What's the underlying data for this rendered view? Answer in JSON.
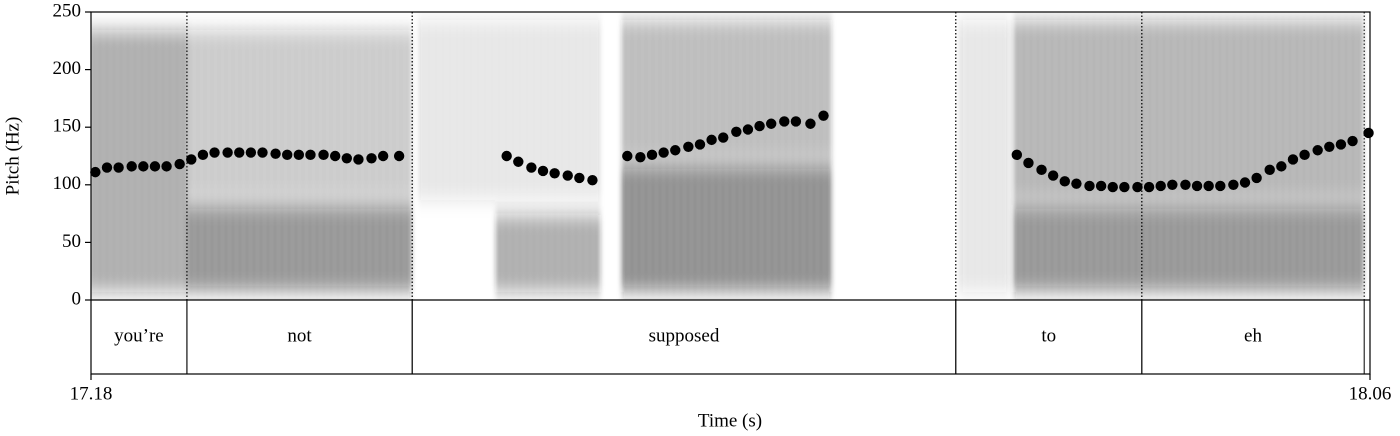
{
  "chart_data": {
    "type": "scatter",
    "x_label": "Time (s)",
    "y_label": "Pitch (Hz)",
    "xlim": [
      17.18,
      18.06
    ],
    "xticks": [
      17.18,
      18.06
    ],
    "ylim": [
      0,
      250
    ],
    "yticks": [
      0,
      50,
      100,
      150,
      200,
      250
    ],
    "color": "#000000",
    "x": [
      17.183,
      17.191,
      17.199,
      17.208,
      17.216,
      17.224,
      17.232,
      17.241,
      17.249,
      17.257,
      17.265,
      17.274,
      17.282,
      17.29,
      17.298,
      17.307,
      17.315,
      17.323,
      17.331,
      17.34,
      17.348,
      17.356,
      17.364,
      17.373,
      17.381,
      17.392,
      17.466,
      17.474,
      17.483,
      17.491,
      17.499,
      17.508,
      17.516,
      17.525,
      17.549,
      17.558,
      17.566,
      17.574,
      17.582,
      17.591,
      17.599,
      17.607,
      17.615,
      17.624,
      17.632,
      17.64,
      17.648,
      17.657,
      17.665,
      17.675,
      17.684,
      17.817,
      17.825,
      17.834,
      17.842,
      17.85,
      17.858,
      17.867,
      17.875,
      17.883,
      17.891,
      17.9,
      17.908,
      17.916,
      17.924,
      17.933,
      17.941,
      17.949,
      17.957,
      17.966,
      17.974,
      17.982,
      17.991,
      17.999,
      18.007,
      18.015,
      18.024,
      18.032,
      18.04,
      18.048,
      18.059
    ],
    "values": [
      111,
      115,
      115,
      116,
      116,
      116,
      116,
      118,
      122,
      126,
      128,
      128,
      128,
      128,
      128,
      127,
      126,
      126,
      126,
      126,
      125,
      123,
      122,
      123,
      125,
      125,
      125,
      120,
      115,
      112,
      110,
      108,
      106,
      104,
      125,
      124,
      126,
      128,
      130,
      133,
      135,
      139,
      141,
      146,
      148,
      151,
      153,
      155,
      155,
      153,
      160,
      126,
      119,
      113,
      108,
      103,
      101,
      99,
      99,
      98,
      98,
      98,
      98,
      99,
      100,
      100,
      99,
      99,
      99,
      100,
      102,
      106,
      113,
      116,
      122,
      126,
      130,
      133,
      135,
      138,
      145
    ],
    "words": [
      {
        "label": "you’re",
        "start": 17.18,
        "end": 17.246
      },
      {
        "label": "not",
        "start": 17.246,
        "end": 17.401
      },
      {
        "label": "supposed",
        "start": 17.401,
        "end": 17.775
      },
      {
        "label": "to",
        "start": 17.775,
        "end": 17.903
      },
      {
        "label": "eh",
        "start": 17.903,
        "end": 18.056
      }
    ]
  }
}
